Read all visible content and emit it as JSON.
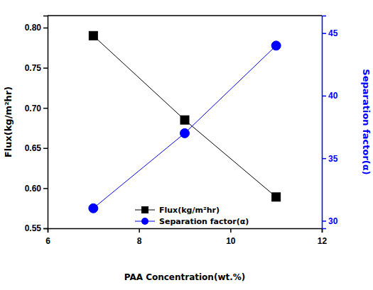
{
  "chart_data": {
    "type": "line",
    "x_label": "PAA Concentration(wt.%)",
    "y_label": "Flux(kg/m²hr)",
    "y2_label": "Separation factor(α)",
    "x": [
      7,
      9,
      11
    ],
    "series": [
      {
        "name": "Flux(kg/m²hr)",
        "color": "#000000",
        "marker": "square",
        "values": [
          0.79,
          0.685,
          0.589
        ]
      },
      {
        "name": "Separation factor(α)",
        "color": "#0000ff",
        "marker": "circle",
        "axis": "y2",
        "values": [
          31,
          37,
          44
        ]
      }
    ],
    "xlim": [
      6,
      12
    ],
    "xticks": [
      6,
      8,
      10,
      12
    ],
    "ylim": [
      0.55,
      0.815
    ],
    "yticks": [
      {
        "value": 0.55,
        "label": "0.55"
      },
      {
        "value": 0.6,
        "label": "0.60"
      },
      {
        "value": 0.65,
        "label": "0.65"
      },
      {
        "value": 0.7,
        "label": "0.70"
      },
      {
        "value": 0.75,
        "label": "0.75"
      },
      {
        "value": 0.8,
        "label": "0.80"
      }
    ],
    "y2lim": [
      29.4,
      46.4
    ],
    "y2ticks": [
      30,
      35,
      40,
      45
    ],
    "legend": "lower center",
    "grid": false
  }
}
